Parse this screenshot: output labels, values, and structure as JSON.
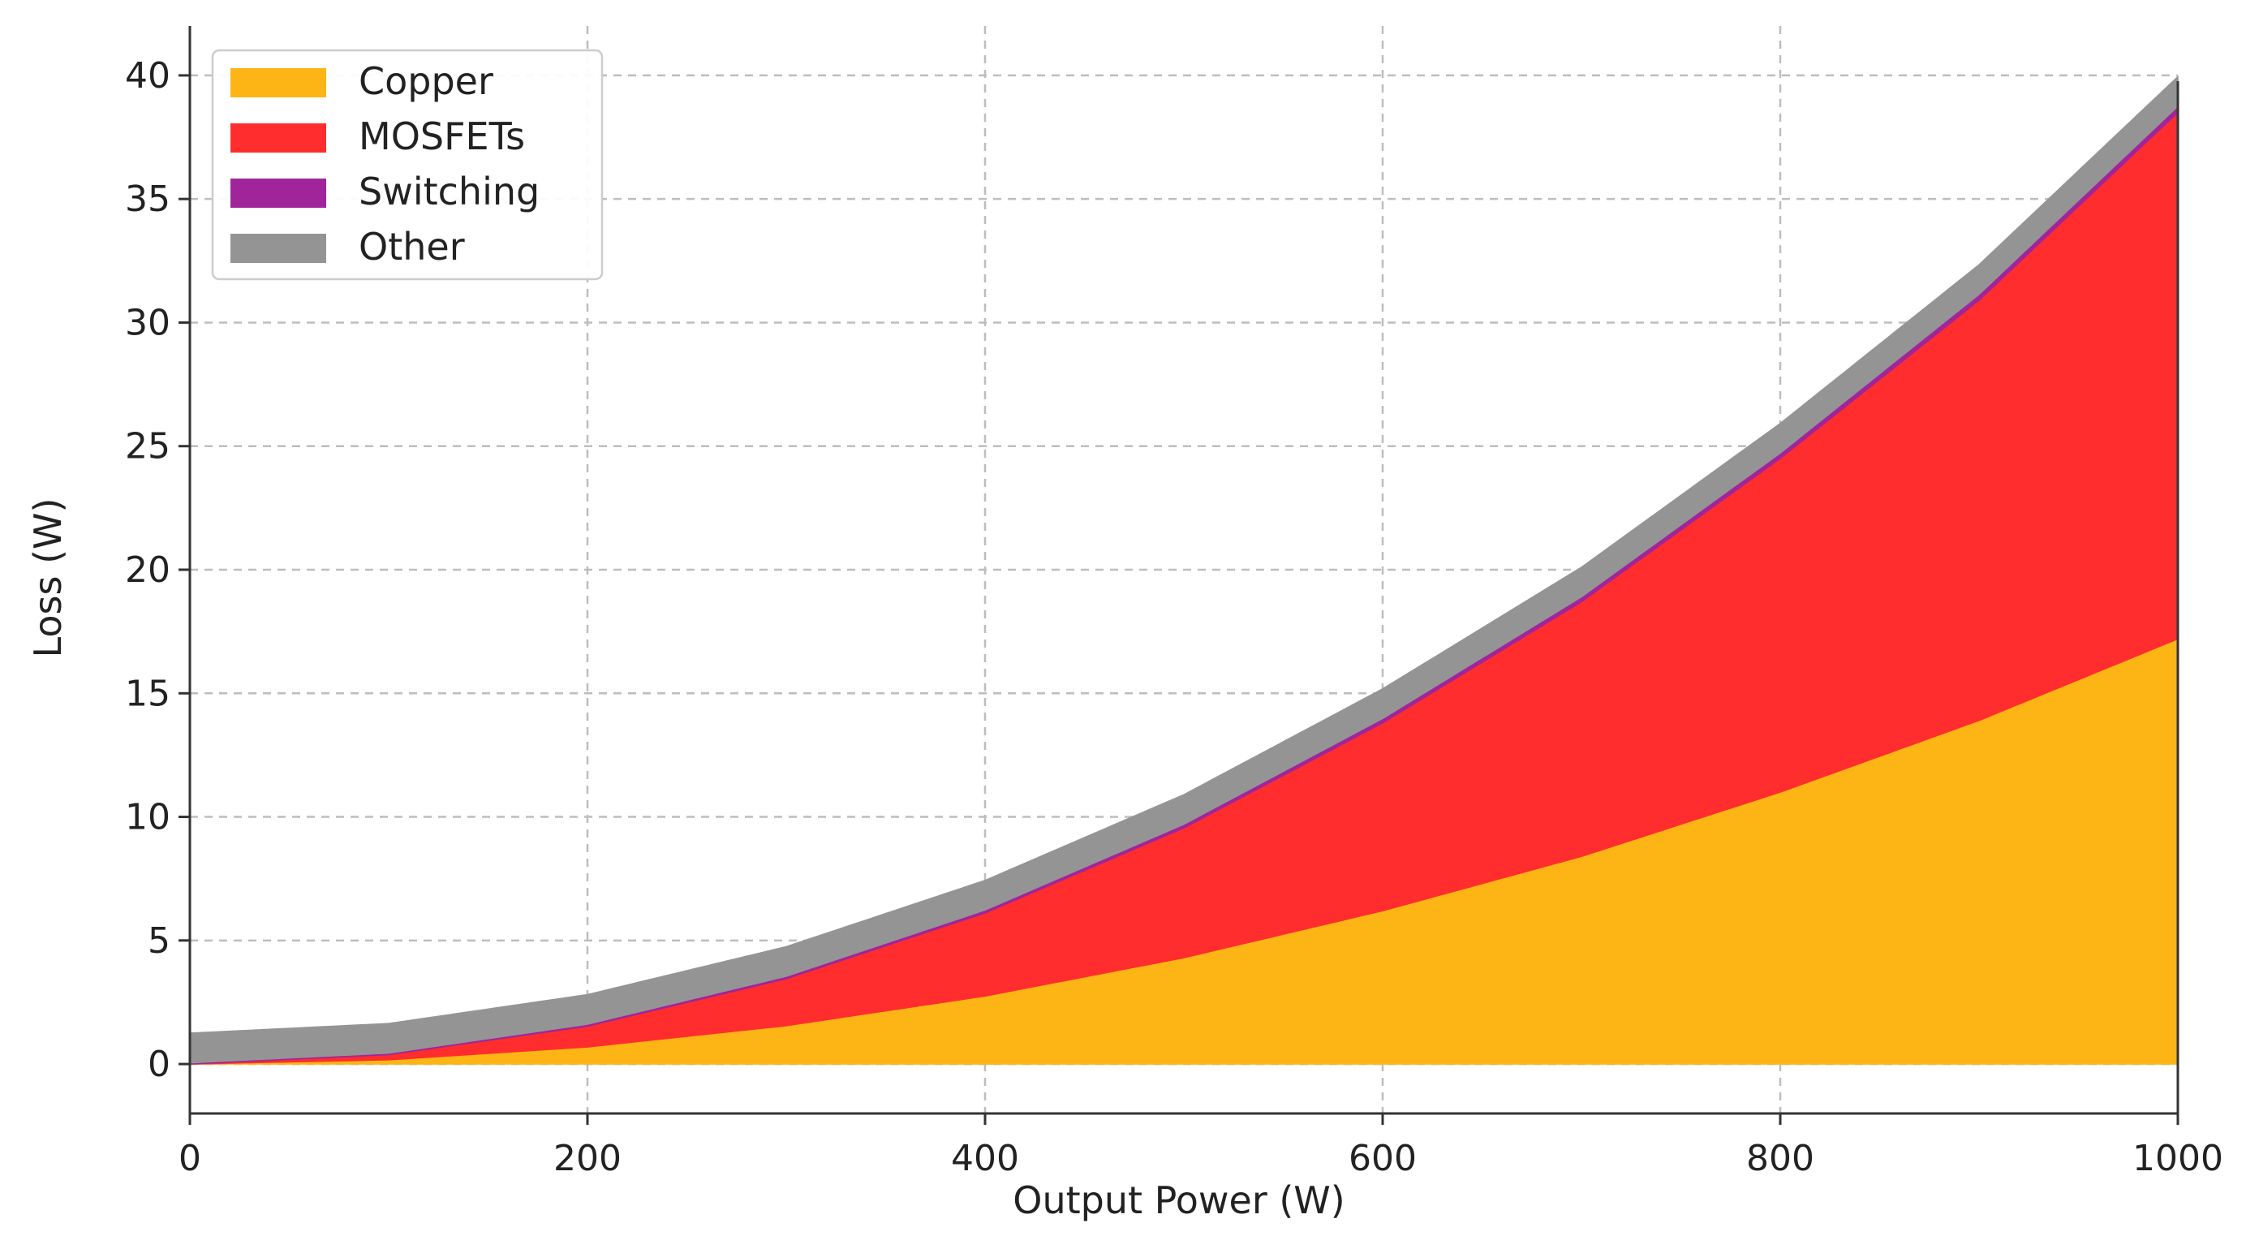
{
  "chart_data": {
    "type": "area",
    "stacked": true,
    "title": "",
    "xlabel": "Output Power (W)",
    "ylabel": "Loss (W)",
    "xlim": [
      0,
      1000
    ],
    "ylim": [
      -2,
      42
    ],
    "x_ticks": [
      0,
      200,
      400,
      600,
      800,
      1000
    ],
    "y_ticks": [
      0,
      5,
      10,
      15,
      20,
      25,
      30,
      35,
      40
    ],
    "grid": true,
    "legend_position": "top-left",
    "x": [
      0,
      100,
      200,
      300,
      400,
      500,
      600,
      700,
      800,
      900,
      1000
    ],
    "series": [
      {
        "name": "Copper",
        "color": "#FDB515",
        "values": [
          0,
          0.17,
          0.69,
          1.55,
          2.75,
          4.3,
          6.2,
          8.4,
          11.0,
          13.9,
          17.2
        ]
      },
      {
        "name": "MOSFETs",
        "color": "#FF2D2D",
        "values": [
          0,
          0.21,
          0.84,
          1.9,
          3.36,
          5.25,
          7.6,
          10.3,
          13.5,
          17.0,
          21.3
        ]
      },
      {
        "name": "Switching",
        "color": "#A0259B",
        "values": [
          0.05,
          0.06,
          0.08,
          0.1,
          0.12,
          0.15,
          0.18,
          0.2,
          0.22,
          0.24,
          0.25
        ]
      },
      {
        "name": "Other",
        "color": "#949494",
        "values": [
          1.2,
          1.2,
          1.2,
          1.2,
          1.2,
          1.2,
          1.2,
          1.2,
          1.2,
          1.2,
          1.2
        ]
      }
    ]
  }
}
